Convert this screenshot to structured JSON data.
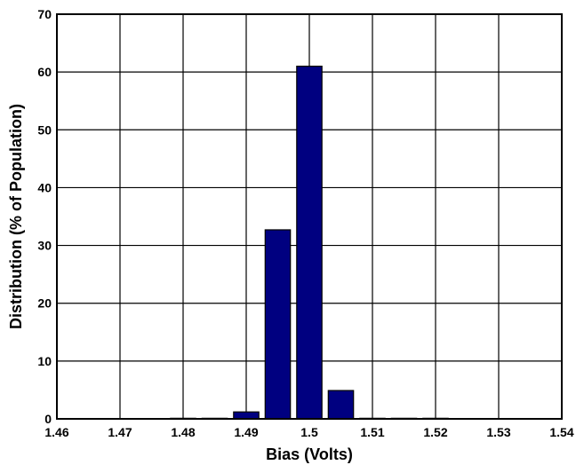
{
  "chart_data": {
    "type": "bar",
    "title": "",
    "xlabel": "Bias (Volts)",
    "ylabel": "Distribution (% of Population)",
    "xlim": [
      1.46,
      1.54
    ],
    "ylim": [
      0,
      70
    ],
    "x_ticks": [
      1.46,
      1.47,
      1.48,
      1.49,
      1.5,
      1.51,
      1.52,
      1.53,
      1.54
    ],
    "x_tick_labels": [
      "1.46",
      "1.47",
      "1.48",
      "1.49",
      "1.5",
      "1.51",
      "1.52",
      "1.53",
      "1.54"
    ],
    "y_ticks": [
      0,
      10,
      20,
      30,
      40,
      50,
      60,
      70
    ],
    "y_tick_labels": [
      "0",
      "10",
      "20",
      "30",
      "40",
      "50",
      "60",
      "70"
    ],
    "grid": true,
    "bar_color": "#000080",
    "bar_width": 0.004,
    "x": [
      1.48,
      1.485,
      1.49,
      1.495,
      1.5,
      1.505,
      1.51,
      1.515,
      1.52
    ],
    "values": [
      0.1,
      0.1,
      1.2,
      32.7,
      61.0,
      4.9,
      0.1,
      0.1,
      0.1
    ]
  }
}
